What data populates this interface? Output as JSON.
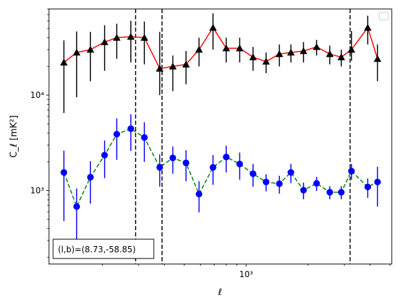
{
  "chart_data": {
    "type": "scatter",
    "xscale": "log",
    "yscale": "log",
    "xlim": [
      110,
      5100
    ],
    "ylim": [
      170,
      80000
    ],
    "xlabel": "ℓ",
    "ylabel": "C_ℓ  [mK²]",
    "x_tick_labels": [
      {
        "value": 1000,
        "label": "10³"
      }
    ],
    "y_tick_labels": [
      {
        "value": 1000,
        "label": "10³"
      },
      {
        "value": 10000,
        "label": "10⁴"
      }
    ],
    "vlines": [
      290,
      390,
      3200
    ],
    "annotation": "(l,b)=(8.73,-58.85)",
    "legend": {
      "location": "upper right",
      "entries": []
    },
    "series": [
      {
        "color": "#ff0000",
        "linestyle": "solid",
        "marker": "triangle",
        "marker_color": "#000000",
        "errorbar_color": "#000000",
        "x": [
          130,
          150,
          175,
          205,
          235,
          275,
          320,
          380,
          440,
          510,
          590,
          690,
          800,
          930,
          1080,
          1250,
          1450,
          1650,
          1900,
          2200,
          2550,
          2900,
          3250,
          3900,
          4350
        ],
        "y": [
          22000,
          28000,
          30000,
          36000,
          40000,
          41000,
          40000,
          19000,
          20000,
          21000,
          30000,
          51000,
          31000,
          31000,
          25000,
          22500,
          27000,
          28000,
          29000,
          32000,
          27000,
          25000,
          30000,
          51000,
          24000
        ],
        "yerr_low": [
          15500,
          18500,
          16000,
          18000,
          16000,
          19000,
          19000,
          9000,
          9000,
          8000,
          10000,
          21000,
          9000,
          9000,
          7000,
          5500,
          7000,
          6000,
          7000,
          6000,
          6000,
          5000,
          7000,
          17000,
          10000
        ],
        "yerr_high": [
          15500,
          18500,
          16000,
          18000,
          16000,
          19000,
          19000,
          27000,
          6000,
          8000,
          10000,
          21000,
          9000,
          9000,
          7000,
          5500,
          7000,
          6000,
          7000,
          6000,
          6000,
          5000,
          17000,
          17000,
          10000
        ]
      },
      {
        "color": "#008000",
        "linestyle": "dashed",
        "marker": "circle",
        "marker_color": "#0000ff",
        "errorbar_color": "#0000ff",
        "x": [
          130,
          150,
          175,
          205,
          235,
          275,
          320,
          380,
          440,
          510,
          590,
          690,
          800,
          930,
          1080,
          1250,
          1450,
          1650,
          1900,
          2200,
          2550,
          2900,
          3250,
          3900,
          4350
        ],
        "y": [
          1550,
          680,
          1380,
          2350,
          3900,
          4450,
          3600,
          1750,
          2200,
          1950,
          920,
          1750,
          2250,
          1900,
          1500,
          1230,
          1180,
          1550,
          1010,
          1190,
          960,
          960,
          1600,
          1090,
          1230
        ],
        "yerr_low": [
          1070,
          370,
          650,
          1000,
          1800,
          1850,
          1600,
          650,
          700,
          700,
          330,
          600,
          700,
          600,
          400,
          250,
          250,
          350,
          200,
          200,
          150,
          150,
          300,
          250,
          550
        ],
        "yerr_high": [
          1070,
          370,
          650,
          1000,
          1800,
          1850,
          1600,
          650,
          700,
          700,
          330,
          600,
          700,
          600,
          400,
          250,
          250,
          350,
          200,
          200,
          150,
          150,
          300,
          250,
          550
        ]
      }
    ]
  }
}
